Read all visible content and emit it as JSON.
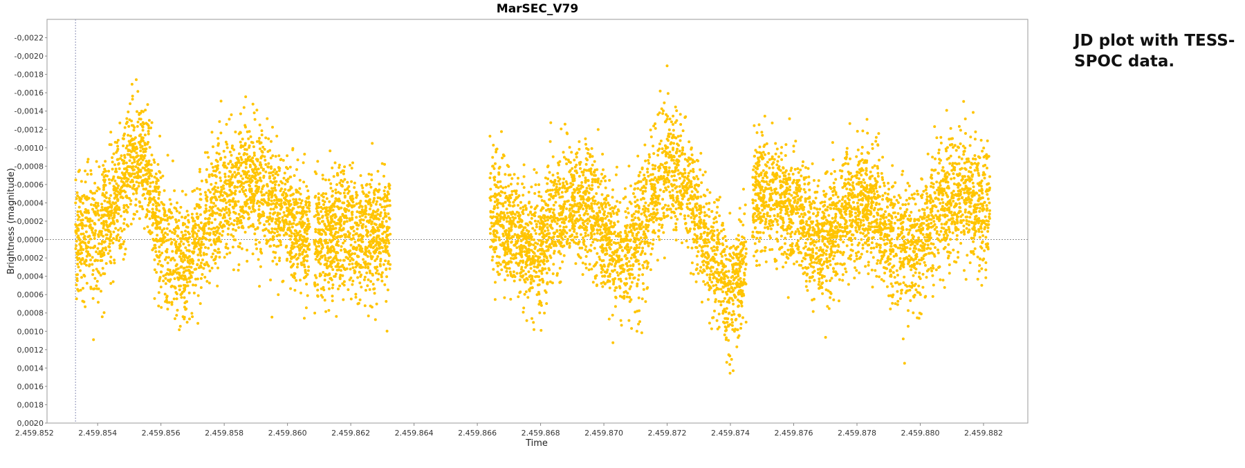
{
  "chart_data": {
    "type": "scatter",
    "title": "MarSEC_V79",
    "xlabel": "Time",
    "ylabel": "Brightness (magnitude)",
    "xlim": [
      2459852.4,
      2459883.4
    ],
    "ylim": [
      0.002,
      -0.0024
    ],
    "y_inverted": true,
    "x_ticks": [
      "2.459.852",
      "2.459.854",
      "2.459.856",
      "2.459.858",
      "2.459.860",
      "2.459.862",
      "2.459.864",
      "2.459.866",
      "2.459.868",
      "2.459.870",
      "2.459.872",
      "2.459.874",
      "2.459.876",
      "2.459.878",
      "2.459.880",
      "2.459.882"
    ],
    "y_ticks": [
      "-0,0022",
      "-0,0020",
      "-0,0018",
      "-0,0016",
      "-0,0014",
      "-0,0012",
      "-0,0010",
      "-0,0008",
      "-0,0006",
      "-0,0004",
      "-0,0002",
      "0,0000",
      "0,0002",
      "0,0004",
      "0,0006",
      "0,0008",
      "0,0010",
      "0,0012",
      "0,0014",
      "0,0016",
      "0,0018",
      "0,0020"
    ],
    "reference_lines": {
      "y": 0.0,
      "x": 2459853.3
    },
    "grid": false,
    "point_color": "#FFC400",
    "segments": [
      {
        "x_start": 2459853.3,
        "x_end": 2459860.7,
        "n_points": 2500
      },
      {
        "x_start": 2459860.85,
        "x_end": 2459863.25,
        "n_points": 900
      },
      {
        "x_start": 2459866.4,
        "x_end": 2459874.5,
        "n_points": 2800
      },
      {
        "x_start": 2459874.7,
        "x_end": 2459882.2,
        "n_points": 2600
      }
    ],
    "series_shape": {
      "x": [
        2459853.3,
        2459853.6,
        2459854.0,
        2459854.5,
        2459855.0,
        2459855.4,
        2459855.8,
        2459856.3,
        2459856.8,
        2459857.3,
        2459857.8,
        2459858.3,
        2459858.8,
        2459859.3,
        2459859.8,
        2459860.3,
        2459860.7,
        2459861.2,
        2459861.8,
        2459862.4,
        2459863.2,
        2459866.4,
        2459867.0,
        2459867.6,
        2459868.0,
        2459868.5,
        2459869.0,
        2459869.5,
        2459870.0,
        2459870.5,
        2459871.0,
        2459871.5,
        2459872.0,
        2459872.5,
        2459873.0,
        2459873.5,
        2459874.0,
        2459874.5,
        2459874.8,
        2459875.2,
        2459875.8,
        2459876.3,
        2459876.8,
        2459877.3,
        2459877.8,
        2459878.3,
        2459878.8,
        2459879.3,
        2459879.8,
        2459880.3,
        2459880.8,
        2459881.3,
        2459881.8,
        2459882.2
      ],
      "y": [
        0.0,
        -0.0001,
        0.0,
        -0.0004,
        -0.0008,
        -0.0009,
        -0.0003,
        0.0002,
        0.0003,
        -0.0001,
        -0.0004,
        -0.0005,
        -0.0006,
        -0.0005,
        -0.0003,
        -0.0001,
        0.0,
        0.0,
        -0.0001,
        0.0,
        -0.0001,
        -0.0003,
        -0.0001,
        0.0001,
        0.0001,
        -0.0003,
        -0.0004,
        -0.0004,
        -0.0001,
        0.0002,
        0.0,
        -0.0004,
        -0.0008,
        -0.0007,
        -0.0002,
        0.0002,
        0.0006,
        0.0002,
        -0.0005,
        -0.0005,
        -0.0003,
        -0.0002,
        0.0001,
        -0.0002,
        -0.0004,
        -0.0004,
        -0.0002,
        0.0001,
        0.0001,
        -0.0002,
        -0.0004,
        -0.0005,
        -0.0004,
        -0.0003
      ]
    },
    "scatter_spread": 0.00033
  },
  "annotation": {
    "line1": "JD plot with TESS-",
    "line2": "SPOC data."
  }
}
